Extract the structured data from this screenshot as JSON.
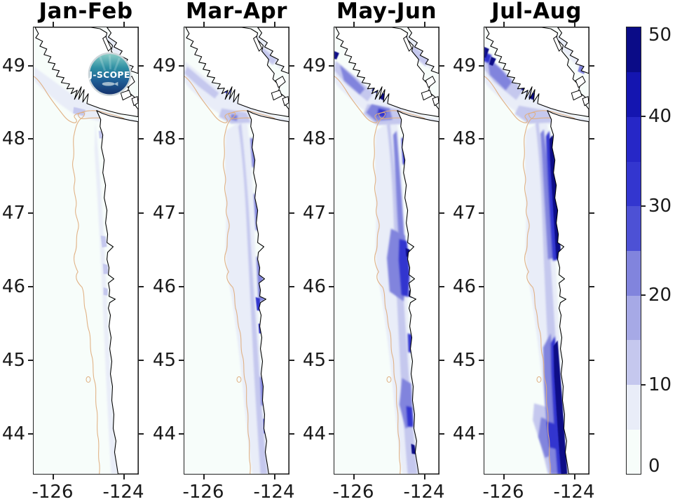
{
  "figure": {
    "panels": [
      {
        "title": "Jan-Feb",
        "has_logo": true
      },
      {
        "title": "Mar-Apr",
        "has_logo": false
      },
      {
        "title": "May-Jun",
        "has_logo": false
      },
      {
        "title": "Jul-Aug",
        "has_logo": false
      }
    ],
    "logo": {
      "text": "J-SCOPE"
    },
    "axes": {
      "lat_ticks": [
        "49",
        "48",
        "47",
        "46",
        "45",
        "44"
      ],
      "lon_ticks": [
        "-126",
        "-124"
      ]
    },
    "colorbar": {
      "tick_labels": [
        "0",
        "10",
        "20",
        "30",
        "40",
        "50"
      ],
      "colors_bottom_to_top": [
        "#f7fdfa",
        "#e9edf8",
        "#c5c8ee",
        "#a6a9e6",
        "#8184dd",
        "#4d51d5",
        "#3336cf",
        "#2627c7",
        "#1415b0",
        "#0a0b87"
      ]
    },
    "colors": {
      "ocean": "#f7fdfa",
      "land": "#ffffff",
      "coastline": "#000000",
      "isobath_contour": "#dfae7e"
    }
  },
  "chart_data": {
    "type": "heatmap",
    "title": "",
    "panels": [
      "Jan-Feb",
      "Mar-Apr",
      "May-Jun",
      "Jul-Aug"
    ],
    "x_ticks": [
      -126,
      -124
    ],
    "y_ticks": [
      49,
      48,
      47,
      46,
      45,
      44
    ],
    "x_range": [
      -126.6,
      -123.5
    ],
    "y_range": [
      43.4,
      49.5
    ],
    "region": "Pacific Northwest coastal ocean: Vancouver Island, Strait of Juan de Fuca, Washington and Oregon coast",
    "colorbar_range": [
      0,
      50
    ],
    "colorbar_ticks": [
      0,
      10,
      20,
      30,
      40,
      50
    ],
    "colorbar_segments": 10,
    "colorbar_colors_bottom_to_top": [
      "#f7fdfa",
      "#e9edf8",
      "#c5c8ee",
      "#a6a9e6",
      "#8184dd",
      "#4d51d5",
      "#3336cf",
      "#2627c7",
      "#1415b0",
      "#0a0b87"
    ],
    "series": [
      {
        "name": "Jan-Feb",
        "coastal_band_typical_value": [
          0,
          10
        ],
        "offshore_value": [
          0,
          5
        ],
        "max_estimate": 15,
        "notes": "faint light-blue strip along shelf and in straits"
      },
      {
        "name": "Mar-Apr",
        "coastal_band_typical_value": [
          10,
          20
        ],
        "offshore_value": [
          0,
          5
        ],
        "max_estimate": 30,
        "notes": "lavender band along entire coast, darker streaks nearshore"
      },
      {
        "name": "May-Jun",
        "coastal_band_typical_value": [
          15,
          30
        ],
        "offshore_value": [
          0,
          5
        ],
        "max_estimate": 50,
        "notes": "strong nearshore patches off Washington, dark pockets in Barkley Sound and strait"
      },
      {
        "name": "Jul-Aug",
        "coastal_band_typical_value": [
          30,
          50
        ],
        "offshore_value": [
          0,
          5
        ],
        "max_estimate": 50,
        "notes": "intense narrow navy band hugging coast, strongest off Oregon and northern Washington"
      }
    ],
    "legend_position": "right colorbar",
    "grid": false
  }
}
